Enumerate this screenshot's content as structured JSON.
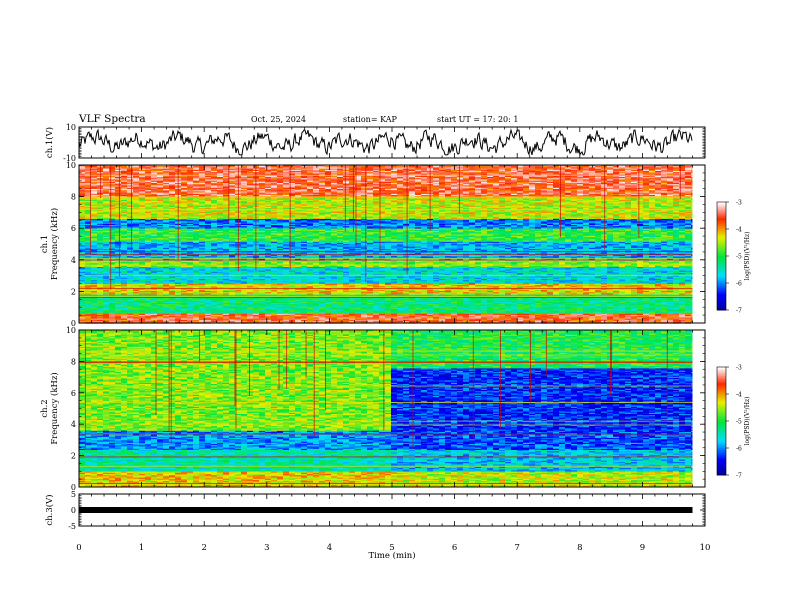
{
  "header": {
    "title": "VLF Spectra",
    "date": "Oct. 25, 2024",
    "station": "station= KAP",
    "start": "start  UT =   17: 20: 1"
  },
  "colorbar": {
    "label": "log(PSD)(V²/Hz)",
    "ticks": [
      "-3",
      "-4",
      "-5",
      "-6",
      "-7"
    ]
  },
  "chart_data": [
    {
      "type": "line",
      "name": "ch1-waveform",
      "ylabel": "ch.1(V)",
      "ylim": [
        -10,
        10
      ],
      "yticks": [
        "10",
        "-10"
      ],
      "xlim": [
        0,
        10
      ],
      "data_extent_min": 9.8,
      "note_series": "dense noisy trace oscillating roughly between -5 and 5 V"
    },
    {
      "type": "heatmap",
      "name": "ch1-spectrogram",
      "ylabel": "ch.1\nFrequency (kHz)",
      "ylim": [
        0,
        10
      ],
      "yticks": [
        "0",
        "2",
        "4",
        "6",
        "8",
        "10"
      ],
      "xlim": [
        0,
        10
      ],
      "data_extent_min": 9.8,
      "clim": [
        -7,
        -3
      ],
      "bands_khz": [
        {
          "from": 0.0,
          "to": 0.6,
          "level": -3.6
        },
        {
          "from": 0.6,
          "to": 1.8,
          "level": -5.2
        },
        {
          "from": 1.8,
          "to": 2.5,
          "level": -4.2
        },
        {
          "from": 2.5,
          "to": 3.6,
          "level": -5.6
        },
        {
          "from": 3.6,
          "to": 4.0,
          "level": -4.6
        },
        {
          "from": 4.0,
          "to": 5.2,
          "level": -5.8
        },
        {
          "from": 5.2,
          "to": 6.0,
          "level": -4.9
        },
        {
          "from": 6.0,
          "to": 6.6,
          "level": -6.0
        },
        {
          "from": 6.6,
          "to": 8.0,
          "level": -4.4
        },
        {
          "from": 8.0,
          "to": 10.0,
          "level": -3.5
        }
      ]
    },
    {
      "type": "heatmap",
      "name": "ch2-spectrogram",
      "ylabel": "ch.2\nFrequency (kHz)",
      "ylim": [
        0,
        10
      ],
      "yticks": [
        "0",
        "2",
        "4",
        "6",
        "8",
        "10"
      ],
      "xlim": [
        0,
        10
      ],
      "data_extent_min": 9.8,
      "clim": [
        -7,
        -3
      ],
      "bands_before_4_9min": [
        {
          "from": 0.0,
          "to": 1.0,
          "level": -4.2
        },
        {
          "from": 1.0,
          "to": 2.4,
          "level": -5.4
        },
        {
          "from": 2.4,
          "to": 3.6,
          "level": -5.9
        },
        {
          "from": 3.6,
          "to": 10.0,
          "level": -4.6
        }
      ],
      "bands_after_4_9min": [
        {
          "from": 0.0,
          "to": 1.0,
          "level": -4.4
        },
        {
          "from": 1.0,
          "to": 2.4,
          "level": -5.7
        },
        {
          "from": 2.4,
          "to": 3.6,
          "level": -6.2
        },
        {
          "from": 3.6,
          "to": 7.6,
          "level": -6.3
        },
        {
          "from": 7.6,
          "to": 10.0,
          "level": -5.0
        }
      ]
    },
    {
      "type": "line",
      "name": "ch3-waveform",
      "ylabel": "ch.3(V)",
      "ylim": [
        -5,
        5
      ],
      "yticks": [
        "5",
        "0",
        "-5"
      ],
      "xlim": [
        0,
        10
      ],
      "data_extent_min": 9.8,
      "constant_value": 0
    }
  ],
  "xaxis": {
    "label": "Time  (min)",
    "ticks": [
      "0",
      "1",
      "2",
      "3",
      "4",
      "5",
      "6",
      "7",
      "8",
      "9",
      "10"
    ]
  }
}
